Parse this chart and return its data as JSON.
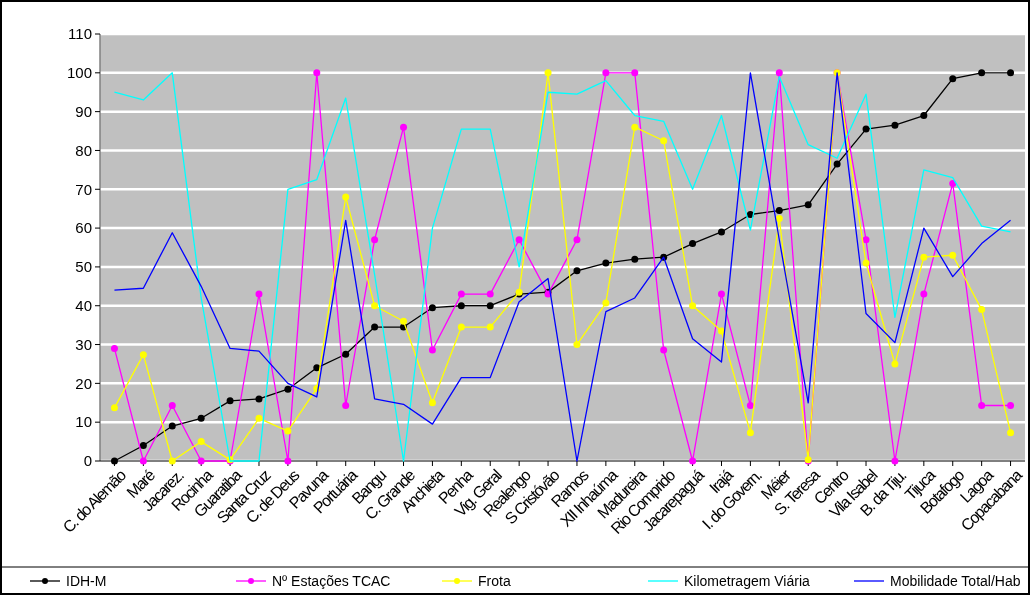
{
  "chart_data": {
    "type": "line",
    "categories": [
      "C. do Alemão",
      "Maré",
      "Jacarez.",
      "Rocinha",
      "Guaratiba",
      "Santa Cruz",
      "C. de Deus",
      "Pavuna",
      "Portuária",
      "Bangu",
      "C. Grande",
      "Anchieta",
      "Penha",
      "Vig. Geral",
      "Realengo",
      "S Cristóvão",
      "Ramos",
      "XII Inhaúma",
      "Madureira",
      "Rio Comprido",
      "Jacarepaguá",
      "Irajá",
      "I. do Govern.",
      "Méier",
      "S. Teresa",
      "Centro",
      "Vila Isabel",
      "B. da Tiju.",
      "Tijuca",
      "Botafogo",
      "Lagoa",
      "Copacabana"
    ],
    "series": [
      {
        "name": "IDH-M",
        "color": "#000000",
        "marker": "circle",
        "values": [
          0,
          4,
          9,
          11,
          15.5,
          16,
          18.5,
          24,
          27.5,
          34.5,
          34.5,
          39.5,
          40,
          40,
          43,
          43.5,
          49,
          51,
          52,
          52.5,
          56,
          59,
          63.5,
          64.5,
          66,
          76.5,
          85.5,
          86.5,
          89,
          98.5,
          100,
          100
        ]
      },
      {
        "name": "Nº Estações TCAC",
        "color": "#ff00ff",
        "marker": "circle",
        "values": [
          29,
          0,
          14.3,
          0,
          0,
          43,
          0,
          100,
          14.3,
          57,
          86,
          28.6,
          43,
          43,
          57,
          43,
          57,
          100,
          100,
          28.6,
          0,
          43,
          14.3,
          100,
          0,
          100,
          57,
          0,
          43,
          71.5,
          14.3,
          14.3
        ]
      },
      {
        "name": "Frota",
        "color": "#ffff00",
        "marker": "circle",
        "values": [
          13.7,
          27.4,
          0,
          5,
          0.3,
          11,
          7.7,
          18.7,
          68,
          40,
          36,
          15,
          34.5,
          34.5,
          43.5,
          100,
          30,
          40.7,
          86,
          82.5,
          40,
          33.5,
          7.3,
          62.5,
          0.3,
          100,
          51,
          25,
          52.5,
          53,
          39,
          7.3
        ]
      },
      {
        "name": "Kilometragem Viária",
        "color": "#00ffff",
        "marker": "none",
        "values": [
          95,
          93,
          100,
          42,
          0,
          0,
          70,
          72.5,
          93.5,
          48,
          0,
          60,
          85.5,
          85.5,
          50,
          95,
          94.5,
          98,
          89,
          87.5,
          70,
          89,
          59.5,
          99,
          81.5,
          78,
          94.5,
          37,
          75,
          73,
          60.5,
          59
        ]
      },
      {
        "name": "Mobilidade Total/Hab",
        "color": "#0000ff",
        "marker": "none",
        "values": [
          44,
          44.5,
          58.8,
          45,
          29,
          28.3,
          20,
          16.5,
          62,
          16,
          14.6,
          9.5,
          21.5,
          21.5,
          41,
          47,
          0,
          38.5,
          42,
          52.5,
          31.5,
          25.5,
          100,
          57,
          15,
          100,
          38,
          30.5,
          60,
          47.5,
          56,
          62
        ]
      }
    ],
    "ylim": [
      0,
      110
    ],
    "yticks": [
      0,
      10,
      20,
      30,
      40,
      50,
      60,
      70,
      80,
      90,
      100,
      110
    ],
    "grid": "y",
    "legend": "bottom"
  }
}
